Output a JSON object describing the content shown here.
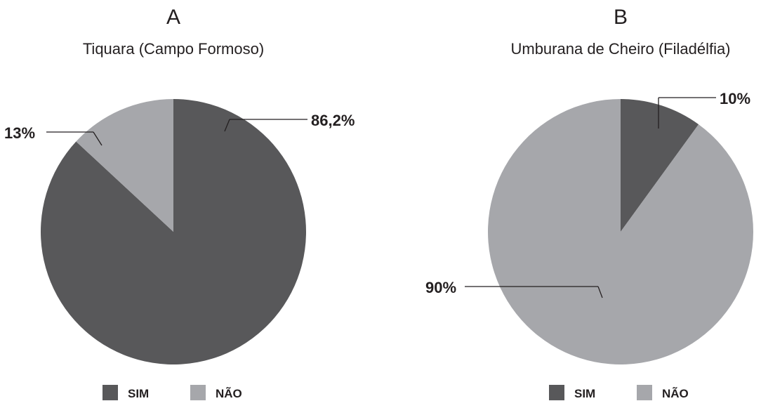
{
  "colors": {
    "sim": "#58585a",
    "nao": "#a6a7ab",
    "text": "#231f20"
  },
  "chart_data": [
    {
      "type": "pie",
      "letter": "A",
      "title": "Tiquara (Campo Formoso)",
      "slices": [
        {
          "label": "SIM",
          "value": 86.2,
          "display": "86,2%"
        },
        {
          "label": "NÃO",
          "value": 13,
          "display": "13%"
        }
      ],
      "legend": [
        "SIM",
        "NÃO"
      ],
      "legend_position": "bottom"
    },
    {
      "type": "pie",
      "letter": "B",
      "title": "Umburana de Cheiro (Filadélfia)",
      "slices": [
        {
          "label": "SIM",
          "value": 10,
          "display": "10%"
        },
        {
          "label": "NÃO",
          "value": 90,
          "display": "90%"
        }
      ],
      "legend": [
        "SIM",
        "NÃO"
      ],
      "legend_position": "bottom"
    }
  ]
}
